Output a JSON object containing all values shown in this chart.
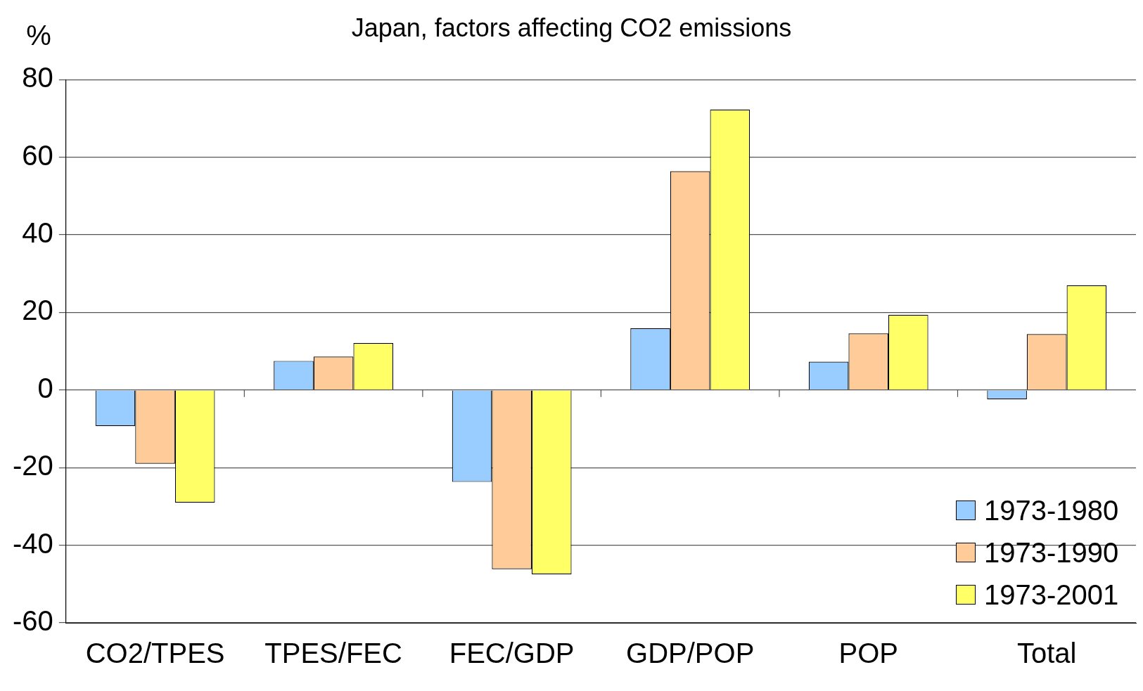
{
  "chart_data": {
    "type": "bar",
    "title": "Japan, factors affecting CO2 emissions",
    "ylabel": "%",
    "categories": [
      "CO2/TPES",
      "TPES/FEC",
      "FEC/GDP",
      "GDP/POP",
      "POP",
      "Total"
    ],
    "series": [
      {
        "name": "1973-1980",
        "color": "#99ccff",
        "values": [
          -9.3,
          7.5,
          -23.7,
          15.9,
          7.3,
          -2.4
        ]
      },
      {
        "name": "1973-1990",
        "color": "#ffcc99",
        "values": [
          -19.0,
          8.6,
          -46.2,
          56.4,
          14.6,
          14.4
        ]
      },
      {
        "name": "1973-2001",
        "color": "#ffff66",
        "values": [
          -29.0,
          12.1,
          -47.5,
          72.3,
          19.4,
          27.0
        ]
      }
    ],
    "ylim": [
      -60,
      80
    ],
    "yticks": [
      -60,
      -40,
      -20,
      0,
      20,
      40,
      60,
      80
    ],
    "grid": "y",
    "legend": "bottom right"
  }
}
